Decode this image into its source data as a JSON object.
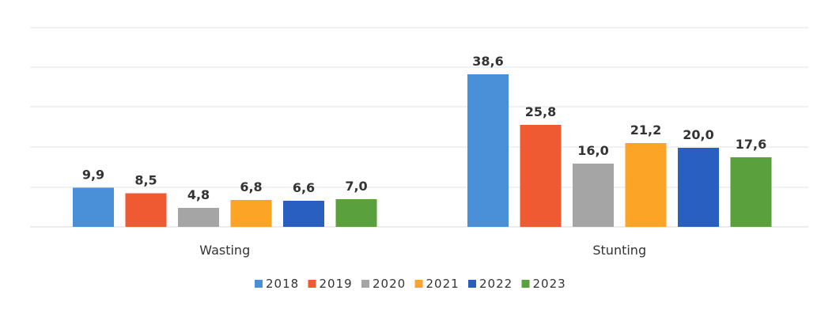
{
  "chart_data": {
    "type": "bar",
    "categories": [
      "Wasting",
      "Stunting"
    ],
    "series": [
      {
        "name": "2018",
        "color": "#4a90d9",
        "values": [
          9.9,
          38.6
        ],
        "labels": [
          "9,9",
          "38,6"
        ]
      },
      {
        "name": "2019",
        "color": "#ef5a33",
        "values": [
          8.5,
          25.8
        ],
        "labels": [
          "8,5",
          "25,8"
        ]
      },
      {
        "name": "2020",
        "color": "#a5a5a5",
        "values": [
          4.8,
          16.0
        ],
        "labels": [
          "4,8",
          "16,0"
        ]
      },
      {
        "name": "2021",
        "color": "#fba426",
        "values": [
          6.8,
          21.2
        ],
        "labels": [
          "6,8",
          "21,2"
        ]
      },
      {
        "name": "2022",
        "color": "#2a5fc2",
        "values": [
          6.6,
          20.0
        ],
        "labels": [
          "6,6",
          "20,0"
        ]
      },
      {
        "name": "2023",
        "color": "#5aa03c",
        "values": [
          7.0,
          17.6
        ],
        "labels": [
          "7,0",
          "17,6"
        ]
      }
    ],
    "ylim": [
      0,
      50
    ],
    "grid": true,
    "legend_position": "bottom"
  }
}
